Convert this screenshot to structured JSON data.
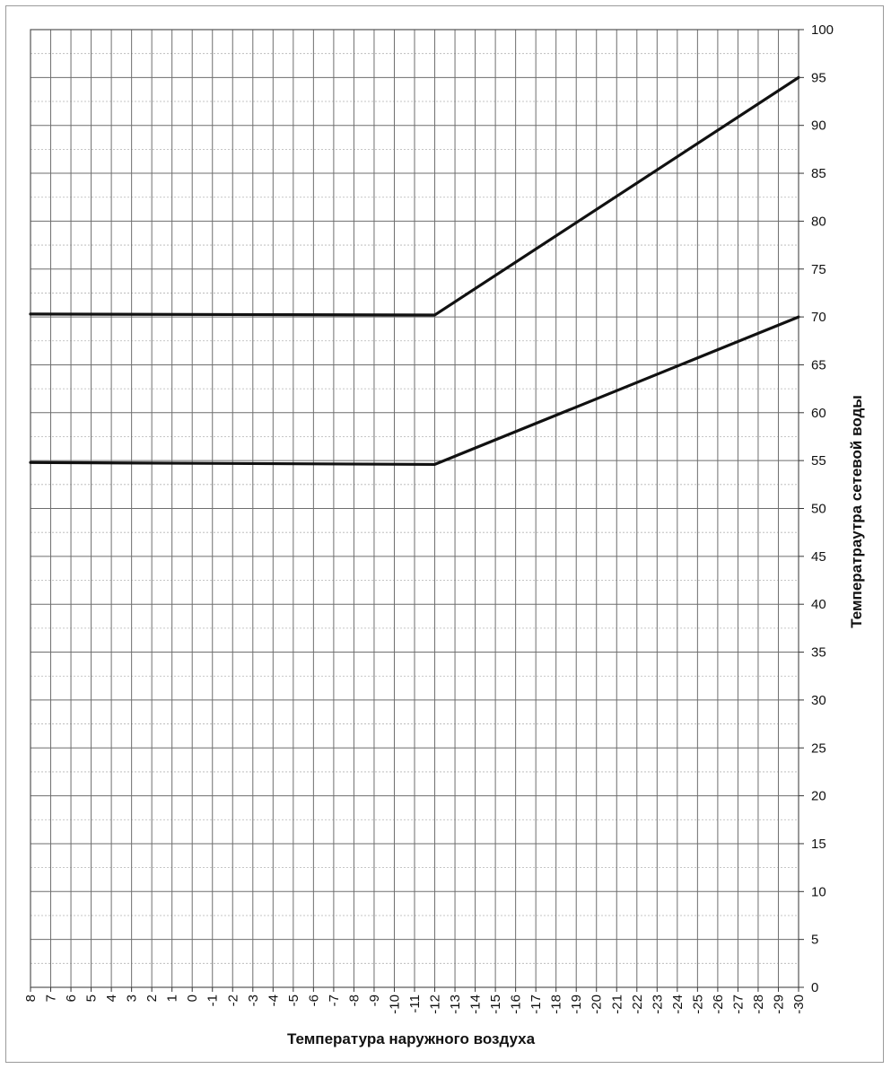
{
  "chart_data": {
    "type": "line",
    "title": "",
    "xlabel": "Температура наружного воздуха",
    "ylabel": "Температраутра сетевой воды",
    "x_ticks": [
      "8",
      "7",
      "6",
      "5",
      "4",
      "3",
      "2",
      "1",
      "0",
      "-1",
      "-2",
      "-3",
      "-4",
      "-5",
      "-6",
      "-7",
      "-8",
      "-9",
      "-10",
      "-11",
      "-12",
      "-13",
      "-14",
      "-15",
      "-16",
      "-17",
      "-18",
      "-19",
      "-20",
      "-21",
      "-22",
      "-23",
      "-24",
      "-25",
      "-26",
      "-27",
      "-28",
      "-29",
      "-30"
    ],
    "xlim": [
      8,
      -30
    ],
    "ylim": [
      0,
      100
    ],
    "y_ticks": [
      "0",
      "5",
      "10",
      "15",
      "20",
      "25",
      "30",
      "35",
      "40",
      "45",
      "50",
      "55",
      "60",
      "65",
      "70",
      "75",
      "80",
      "85",
      "90",
      "95",
      "100"
    ],
    "y_axis_position": "right",
    "grid": true,
    "legend": "none",
    "series": [
      {
        "x": [
          8,
          -12,
          -30
        ],
        "y": [
          70.3,
          70.2,
          95.0
        ]
      },
      {
        "x": [
          8,
          -12,
          -30
        ],
        "y": [
          54.8,
          54.6,
          70.0
        ]
      }
    ],
    "colors": {
      "line": "#111111",
      "grid_major": "#6e6e6e",
      "grid_minor": "#b4b4b4"
    }
  }
}
